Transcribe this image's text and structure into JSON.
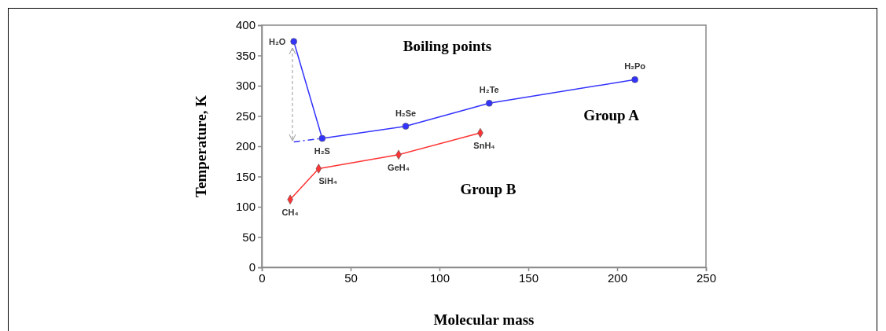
{
  "chart_data": {
    "type": "line",
    "title": "Boiling points",
    "xlabel": "Molecular mass",
    "ylabel": "Temperature, K",
    "xlim": [
      0,
      250
    ],
    "xticks": [
      0,
      50,
      100,
      150,
      200,
      250
    ],
    "ylim": [
      0,
      400
    ],
    "yticks": [
      0,
      50,
      100,
      150,
      200,
      250,
      300,
      350,
      400
    ],
    "grid": false,
    "series": [
      {
        "name": "Group A",
        "color": "#3333ff",
        "marker": "circle",
        "x": [
          18,
          34,
          81,
          128,
          210
        ],
        "values": [
          373,
          213,
          233,
          271,
          310
        ]
      },
      {
        "name": "Group B",
        "color": "#ff3333",
        "marker": "diamond",
        "x": [
          16,
          32,
          77,
          123
        ],
        "values": [
          112,
          163,
          186,
          222
        ]
      },
      {
        "color": "#3333ff",
        "marker": "none",
        "line_style": "dashed",
        "x": [
          18,
          34
        ],
        "values": [
          207,
          213
        ]
      }
    ],
    "annotations": [
      {
        "text": "H₂O",
        "x": 18,
        "y": 373
      },
      {
        "text": "H₂S",
        "x": 34,
        "y": 213
      },
      {
        "text": "H₂Se",
        "x": 81,
        "y": 233
      },
      {
        "text": "H₂Te",
        "x": 128,
        "y": 271
      },
      {
        "text": "H₂Po",
        "x": 210,
        "y": 310
      },
      {
        "text": "CH₄",
        "x": 16,
        "y": 112
      },
      {
        "text": "SiH₄",
        "x": 32,
        "y": 163
      },
      {
        "text": "GeH₄",
        "x": 77,
        "y": 186
      },
      {
        "text": "SnH₄",
        "x": 123,
        "y": 222
      }
    ]
  }
}
